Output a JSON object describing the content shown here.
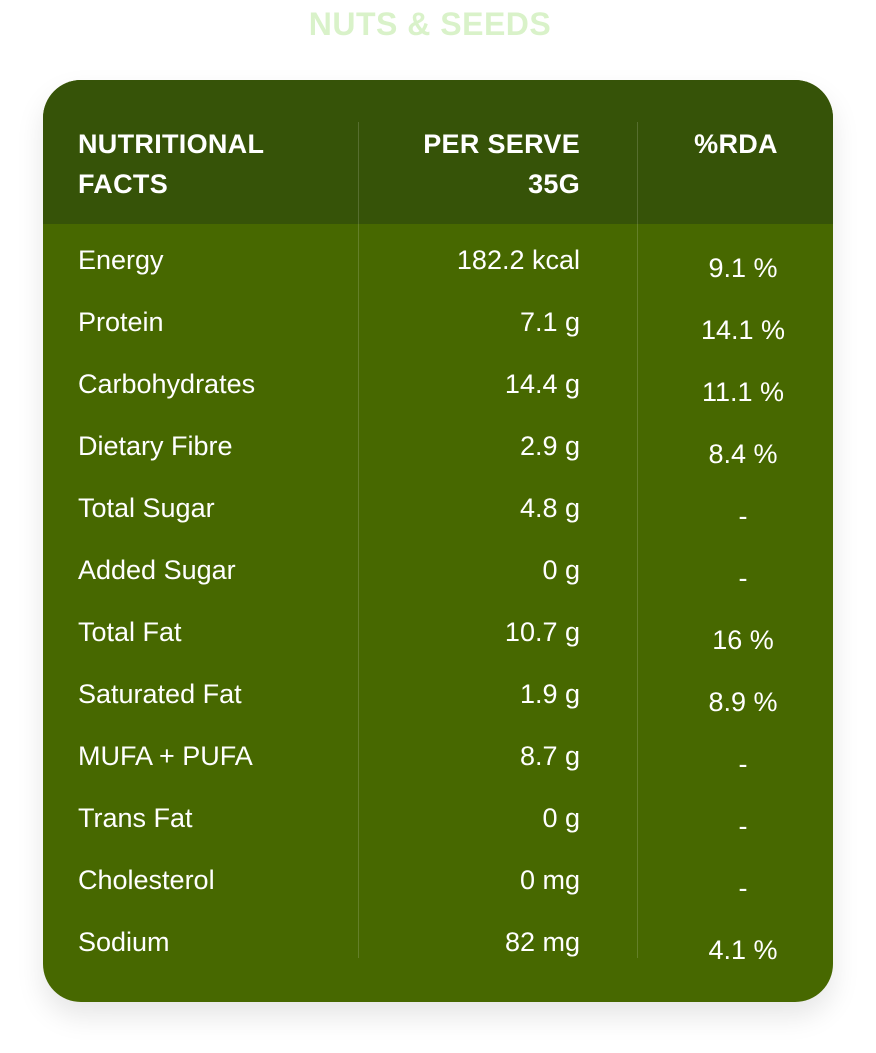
{
  "title": "NUTS & SEEDS",
  "table": {
    "headers": {
      "name": "NUTRITIONAL FACTS",
      "serve_line1": "PER SERVE",
      "serve_line2": "35G",
      "rda": "%RDA"
    },
    "rows": [
      {
        "name": "Energy",
        "serve": "182.2 kcal",
        "rda": "9.1 %"
      },
      {
        "name": "Protein",
        "serve": "7.1 g",
        "rda": "14.1 %"
      },
      {
        "name": "Carbohydrates",
        "serve": "14.4 g",
        "rda": "11.1 %"
      },
      {
        "name": "Dietary Fibre",
        "serve": "2.9 g",
        "rda": "8.4 %"
      },
      {
        "name": "Total Sugar",
        "serve": "4.8 g",
        "rda": "-"
      },
      {
        "name": "Added Sugar",
        "serve": "0 g",
        "rda": "-"
      },
      {
        "name": "Total Fat",
        "serve": "10.7 g",
        "rda": "16 %"
      },
      {
        "name": "Saturated Fat",
        "serve": "1.9 g",
        "rda": "8.9 %"
      },
      {
        "name": "MUFA + PUFA",
        "serve": "8.7 g",
        "rda": "-"
      },
      {
        "name": "Trans Fat",
        "serve": "0 g",
        "rda": "-"
      },
      {
        "name": "Cholesterol",
        "serve": "0 mg",
        "rda": "-"
      },
      {
        "name": "Sodium",
        "serve": "82 mg",
        "rda": "4.1 %"
      }
    ]
  },
  "colors": {
    "title": "#d9f2c9",
    "header_bg": "#365308",
    "body_bg": "#476800",
    "text": "#ffffff"
  }
}
